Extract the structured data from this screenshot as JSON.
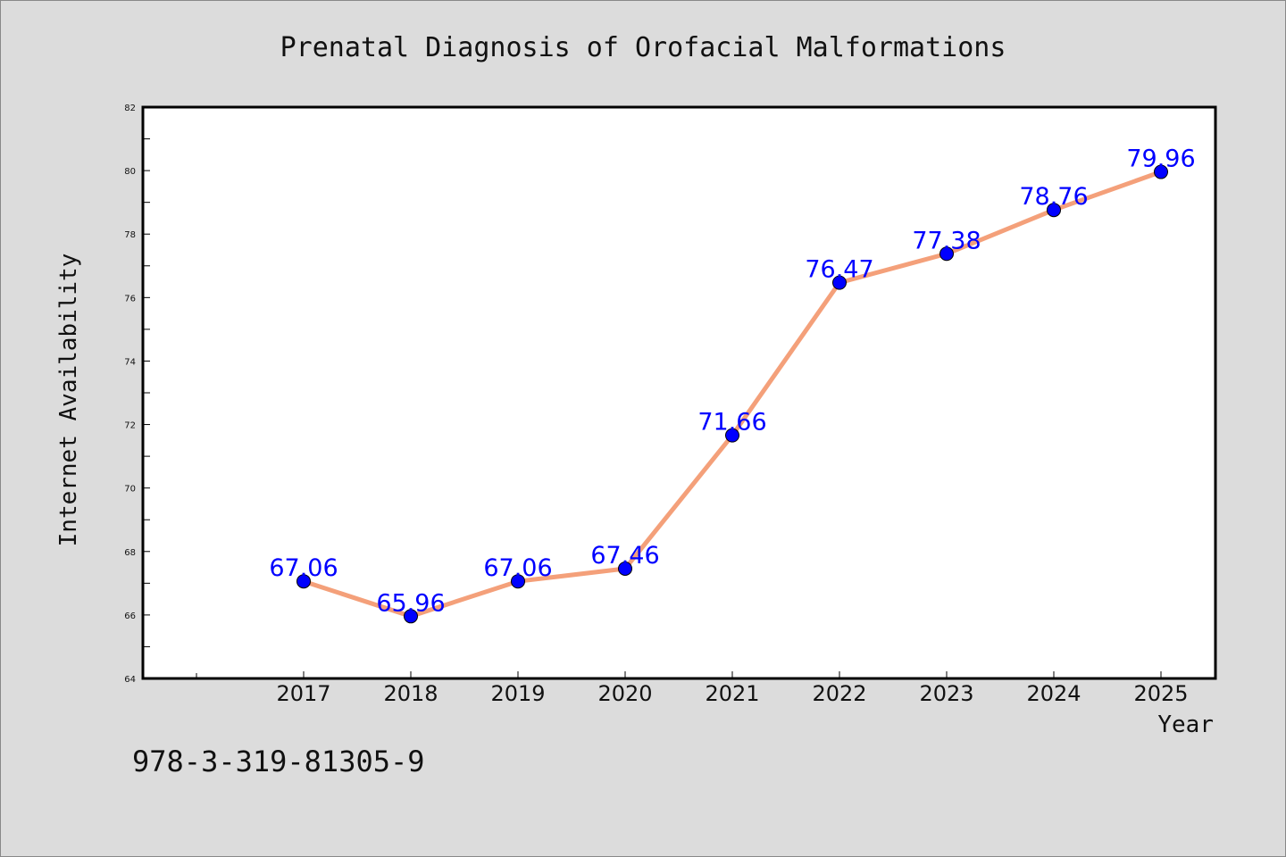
{
  "chart_data": {
    "type": "line",
    "title": "Prenatal Diagnosis of Orofacial Malformations",
    "xlabel": "Year",
    "ylabel": "Internet Availability",
    "categories": [
      "2017",
      "2018",
      "2019",
      "2020",
      "2021",
      "2022",
      "2023",
      "2024",
      "2025"
    ],
    "values": [
      67.06,
      65.96,
      67.06,
      67.46,
      71.66,
      76.47,
      77.38,
      78.76,
      79.96
    ],
    "data_labels": [
      "67.06",
      "65.96",
      "67.06",
      "67.46",
      "71.66",
      "76.47",
      "77.38",
      "78.76",
      "79.96"
    ],
    "ylim": [
      64,
      82
    ],
    "yticks": [
      "64",
      "66",
      "68",
      "70",
      "72",
      "74",
      "76",
      "78",
      "80",
      "82"
    ],
    "grid": false,
    "line_color": "#f4a07a",
    "marker_color": "#0000ff",
    "label_color": "#0000ff"
  },
  "footer_text": "978-3-319-81305-9"
}
